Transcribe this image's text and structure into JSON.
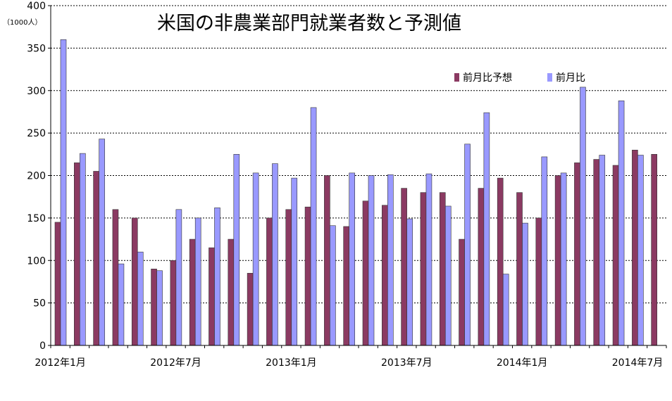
{
  "chart_data": {
    "type": "bar",
    "title": "米国の非農業部門就業者数と予測値",
    "unit_label": "（1000人）",
    "ylim": [
      0,
      400
    ],
    "y_ticks": [
      0,
      50,
      100,
      150,
      200,
      250,
      300,
      350,
      400
    ],
    "grid": true,
    "legend_position": "top-right",
    "x_tick_labels": [
      {
        "index": 0,
        "label": "2012年1月"
      },
      {
        "index": 6,
        "label": "2012年7月"
      },
      {
        "index": 12,
        "label": "2013年1月"
      },
      {
        "index": 18,
        "label": "2013年7月"
      },
      {
        "index": 24,
        "label": "2014年1月"
      },
      {
        "index": 30,
        "label": "2014年7月"
      }
    ],
    "categories": [
      "2012-01",
      "2012-02",
      "2012-03",
      "2012-04",
      "2012-05",
      "2012-06",
      "2012-07",
      "2012-08",
      "2012-09",
      "2012-10",
      "2012-11",
      "2012-12",
      "2013-01",
      "2013-02",
      "2013-03",
      "2013-04",
      "2013-05",
      "2013-06",
      "2013-07",
      "2013-08",
      "2013-09",
      "2013-10",
      "2013-11",
      "2013-12",
      "2014-01",
      "2014-02",
      "2014-03",
      "2014-04",
      "2014-05",
      "2014-06",
      "2014-07"
    ],
    "series": [
      {
        "name": "前月比予想",
        "color": "#8b3a62",
        "values": [
          145,
          215,
          205,
          160,
          150,
          90,
          100,
          125,
          115,
          125,
          85,
          150,
          160,
          163,
          200,
          140,
          170,
          165,
          185,
          180,
          180,
          125,
          185,
          197,
          180,
          150,
          200,
          215,
          219,
          212,
          230
        ]
      },
      {
        "name": "前月比",
        "color": "#9999ff",
        "values": [
          360,
          226,
          243,
          96,
          110,
          88,
          160,
          150,
          162,
          225,
          203,
          214,
          197,
          280,
          141,
          203,
          200,
          201,
          149,
          202,
          164,
          237,
          274,
          84,
          144,
          222,
          203,
          304,
          224,
          288,
          224
        ]
      }
    ],
    "extra_bar": {
      "series": 0,
      "value": 225
    }
  }
}
